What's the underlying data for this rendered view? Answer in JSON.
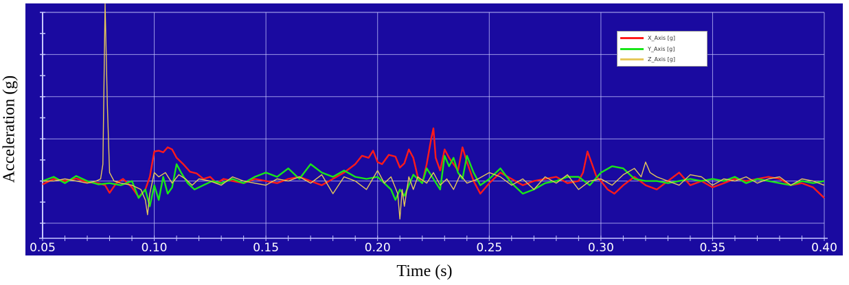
{
  "chart_data": {
    "type": "line",
    "title": "",
    "xlabel": "Time (s)",
    "ylabel": "Acceleration (g)",
    "xlim": [
      0.05,
      0.4
    ],
    "ylim": [
      -1.0,
      4.0
    ],
    "xticks": [
      "0.05",
      "0.10",
      "0.15",
      "0.20",
      "0.25",
      "0.30",
      "0.35",
      "0.40"
    ],
    "xtick_values": [
      0.05,
      0.1,
      0.15,
      0.2,
      0.25,
      0.3,
      0.35,
      0.4
    ],
    "grid": true,
    "legend_position": "top-right",
    "background_color": "#1a0aa0",
    "grid_color": "#c8c8ff",
    "series": [
      {
        "name": "X_Axis [g]",
        "color": "#ff1a1a",
        "x": [
          0.05,
          0.055,
          0.06,
          0.065,
          0.07,
          0.075,
          0.078,
          0.08,
          0.083,
          0.086,
          0.09,
          0.093,
          0.096,
          0.098,
          0.1,
          0.102,
          0.104,
          0.106,
          0.108,
          0.11,
          0.113,
          0.116,
          0.119,
          0.122,
          0.125,
          0.128,
          0.131,
          0.135,
          0.14,
          0.145,
          0.15,
          0.155,
          0.16,
          0.165,
          0.17,
          0.175,
          0.18,
          0.185,
          0.19,
          0.193,
          0.196,
          0.198,
          0.2,
          0.202,
          0.205,
          0.208,
          0.21,
          0.212,
          0.214,
          0.216,
          0.218,
          0.22,
          0.222,
          0.224,
          0.225,
          0.226,
          0.228,
          0.23,
          0.232,
          0.234,
          0.236,
          0.238,
          0.24,
          0.243,
          0.246,
          0.25,
          0.255,
          0.26,
          0.265,
          0.27,
          0.275,
          0.28,
          0.285,
          0.29,
          0.292,
          0.294,
          0.296,
          0.298,
          0.3,
          0.303,
          0.306,
          0.31,
          0.315,
          0.32,
          0.325,
          0.33,
          0.335,
          0.34,
          0.345,
          0.35,
          0.355,
          0.36,
          0.365,
          0.37,
          0.375,
          0.38,
          0.385,
          0.39,
          0.395,
          0.4
        ],
        "y": [
          -0.08,
          0.05,
          0.0,
          0.06,
          -0.03,
          -0.05,
          -0.1,
          -0.28,
          -0.05,
          0.05,
          -0.15,
          -0.38,
          -0.2,
          0.1,
          0.7,
          0.72,
          0.68,
          0.8,
          0.75,
          0.55,
          0.4,
          0.22,
          0.18,
          0.05,
          0.1,
          -0.05,
          0.05,
          0.0,
          -0.05,
          0.05,
          0.0,
          -0.05,
          0.05,
          0.1,
          0.0,
          -0.1,
          0.05,
          0.2,
          0.4,
          0.6,
          0.55,
          0.72,
          0.45,
          0.4,
          0.62,
          0.58,
          0.32,
          0.42,
          0.75,
          0.55,
          0.1,
          -0.05,
          0.4,
          1.0,
          1.25,
          0.55,
          0.25,
          0.75,
          0.55,
          0.4,
          0.25,
          0.8,
          0.45,
          0.0,
          -0.3,
          -0.05,
          0.2,
          0.05,
          -0.1,
          0.0,
          0.05,
          0.1,
          -0.05,
          0.0,
          0.2,
          0.7,
          0.4,
          0.1,
          0.0,
          -0.2,
          -0.3,
          -0.1,
          0.1,
          -0.1,
          -0.2,
          0.0,
          0.2,
          -0.1,
          0.0,
          -0.15,
          -0.05,
          0.05,
          0.0,
          0.05,
          0.1,
          0.05,
          -0.1,
          -0.05,
          -0.15,
          -0.4
        ]
      },
      {
        "name": "Y_Axis [g]",
        "color": "#19e619",
        "x": [
          0.05,
          0.055,
          0.06,
          0.065,
          0.07,
          0.075,
          0.08,
          0.085,
          0.09,
          0.093,
          0.096,
          0.098,
          0.1,
          0.102,
          0.104,
          0.106,
          0.108,
          0.11,
          0.112,
          0.115,
          0.118,
          0.122,
          0.126,
          0.13,
          0.135,
          0.14,
          0.145,
          0.15,
          0.155,
          0.16,
          0.165,
          0.17,
          0.175,
          0.18,
          0.185,
          0.19,
          0.195,
          0.2,
          0.203,
          0.206,
          0.208,
          0.21,
          0.212,
          0.214,
          0.216,
          0.218,
          0.22,
          0.222,
          0.225,
          0.228,
          0.23,
          0.232,
          0.234,
          0.236,
          0.238,
          0.24,
          0.243,
          0.246,
          0.25,
          0.255,
          0.26,
          0.265,
          0.27,
          0.275,
          0.28,
          0.285,
          0.29,
          0.295,
          0.3,
          0.305,
          0.31,
          0.315,
          0.32,
          0.325,
          0.33,
          0.335,
          0.34,
          0.345,
          0.35,
          0.355,
          0.36,
          0.365,
          0.37,
          0.375,
          0.38,
          0.385,
          0.39,
          0.395,
          0.4
        ],
        "y": [
          0.0,
          0.1,
          -0.05,
          0.12,
          0.0,
          -0.08,
          -0.05,
          -0.1,
          0.0,
          -0.4,
          -0.2,
          -0.6,
          -0.1,
          -0.45,
          0.1,
          -0.3,
          -0.15,
          0.4,
          0.2,
          -0.05,
          -0.2,
          -0.1,
          0.0,
          -0.05,
          0.05,
          -0.05,
          0.1,
          0.2,
          0.1,
          0.3,
          0.05,
          0.4,
          0.2,
          0.1,
          0.25,
          0.1,
          0.05,
          0.1,
          -0.05,
          -0.2,
          -0.45,
          -0.2,
          -0.35,
          -0.1,
          0.15,
          0.05,
          -0.05,
          0.3,
          0.05,
          -0.2,
          0.6,
          0.35,
          0.55,
          0.2,
          0.05,
          0.6,
          0.2,
          -0.1,
          0.05,
          0.3,
          -0.05,
          -0.3,
          -0.2,
          -0.05,
          0.0,
          0.1,
          0.1,
          -0.1,
          0.2,
          0.35,
          0.3,
          0.05,
          0.0,
          0.0,
          -0.05,
          0.0,
          0.05,
          0.0,
          0.05,
          0.0,
          0.1,
          -0.05,
          0.05,
          0.0,
          -0.05,
          -0.1,
          0.0,
          -0.05,
          0.0
        ]
      },
      {
        "name": "Z_Axis [g]",
        "color": "#e6c85a",
        "x": [
          0.05,
          0.055,
          0.06,
          0.065,
          0.07,
          0.074,
          0.076,
          0.077,
          0.078,
          0.079,
          0.08,
          0.082,
          0.085,
          0.09,
          0.094,
          0.096,
          0.097,
          0.098,
          0.1,
          0.102,
          0.105,
          0.108,
          0.111,
          0.114,
          0.117,
          0.12,
          0.125,
          0.13,
          0.135,
          0.14,
          0.145,
          0.15,
          0.155,
          0.16,
          0.165,
          0.17,
          0.175,
          0.18,
          0.185,
          0.19,
          0.195,
          0.2,
          0.203,
          0.206,
          0.209,
          0.21,
          0.211,
          0.212,
          0.214,
          0.216,
          0.218,
          0.222,
          0.225,
          0.228,
          0.231,
          0.234,
          0.237,
          0.24,
          0.245,
          0.25,
          0.255,
          0.26,
          0.265,
          0.27,
          0.275,
          0.28,
          0.285,
          0.29,
          0.295,
          0.3,
          0.305,
          0.31,
          0.315,
          0.318,
          0.32,
          0.322,
          0.325,
          0.33,
          0.335,
          0.34,
          0.345,
          0.35,
          0.355,
          0.36,
          0.365,
          0.37,
          0.375,
          0.38,
          0.385,
          0.39,
          0.395,
          0.4
        ],
        "y": [
          0.0,
          0.0,
          0.05,
          0.0,
          -0.05,
          0.0,
          0.05,
          0.4,
          4.2,
          1.8,
          0.2,
          0.0,
          -0.05,
          -0.1,
          -0.2,
          -0.45,
          -0.8,
          -0.3,
          0.2,
          0.1,
          0.2,
          -0.05,
          0.15,
          0.05,
          -0.1,
          0.05,
          0.0,
          -0.1,
          0.1,
          0.0,
          -0.05,
          -0.1,
          0.05,
          0.0,
          0.1,
          -0.05,
          0.15,
          -0.3,
          0.1,
          0.0,
          -0.2,
          0.25,
          -0.05,
          0.1,
          -0.3,
          -0.9,
          -0.2,
          -0.6,
          0.1,
          -0.2,
          0.1,
          -0.05,
          0.2,
          -0.1,
          0.05,
          -0.2,
          0.15,
          -0.05,
          0.05,
          0.2,
          0.1,
          -0.1,
          0.05,
          -0.2,
          0.1,
          -0.05,
          0.15,
          -0.2,
          0.0,
          0.05,
          -0.1,
          0.15,
          0.3,
          0.1,
          0.45,
          0.2,
          0.1,
          0.0,
          -0.1,
          0.15,
          0.1,
          -0.1,
          0.05,
          0.0,
          0.1,
          -0.05,
          0.05,
          0.1,
          -0.1,
          0.05,
          0.0,
          -0.1
        ]
      }
    ]
  }
}
